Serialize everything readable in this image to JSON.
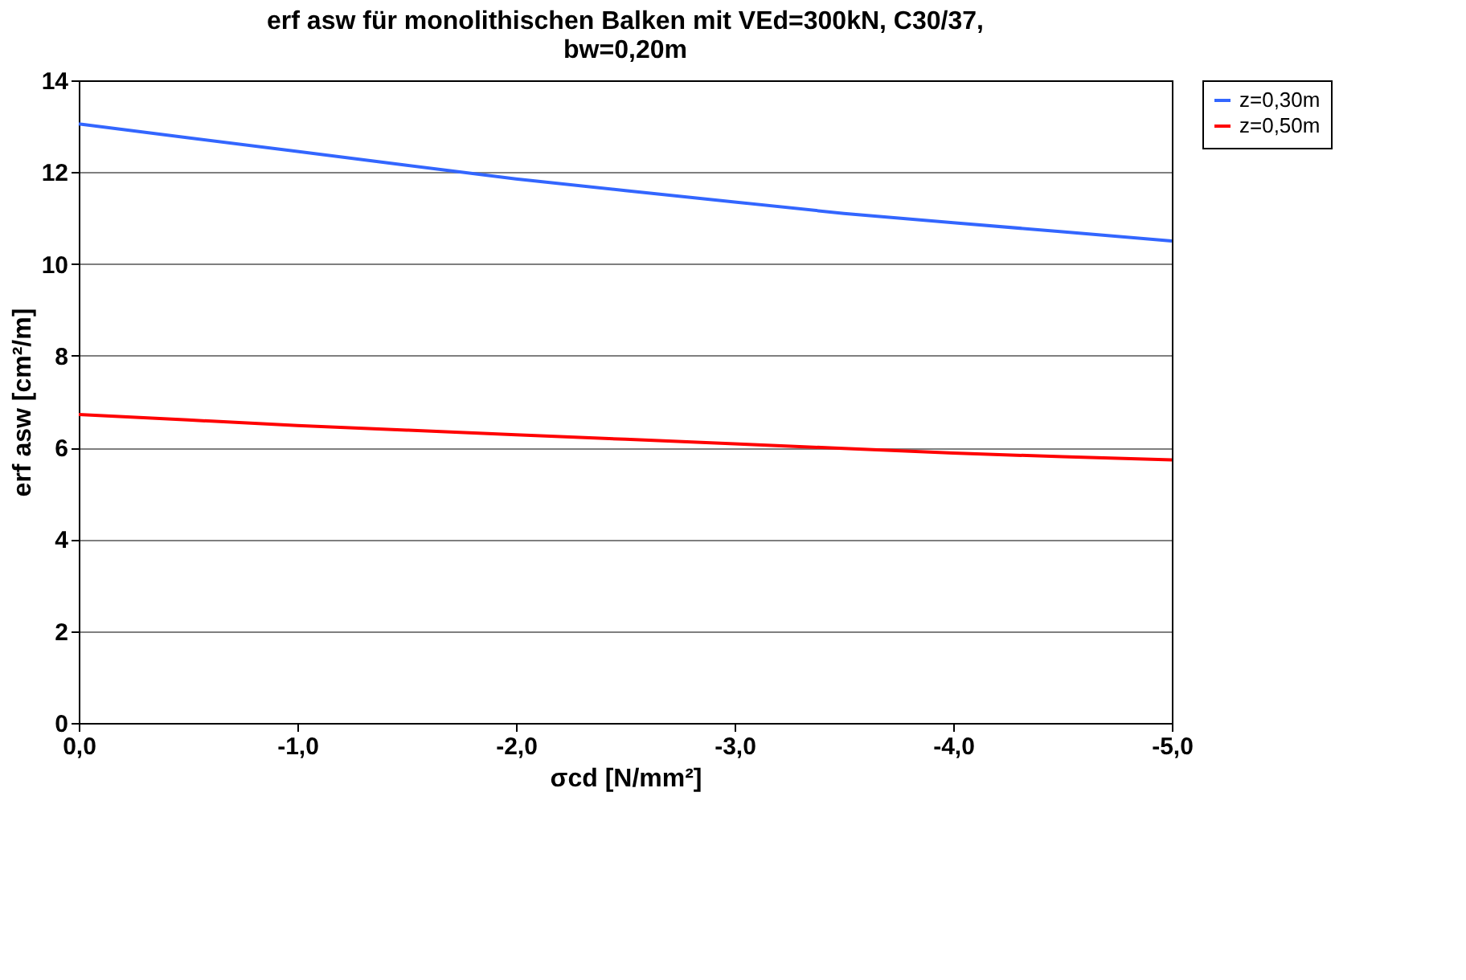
{
  "chart_data": {
    "type": "line",
    "title": [
      "erf asw für monolithischen Balken mit VEd=300kN, C30/37,",
      "bw=0,20m"
    ],
    "xlabel": "σcd [N/mm²]",
    "ylabel": "erf asw  [cm²/m]",
    "x": [
      0,
      -0.5,
      -1,
      -1.5,
      -2,
      -2.5,
      -3,
      -3.5,
      -4,
      -4.5,
      -5
    ],
    "series": [
      {
        "name": "z=0,30m",
        "color": "#3366ff",
        "values": [
          13.05,
          12.75,
          12.45,
          12.15,
          11.85,
          11.6,
          11.35,
          11.1,
          10.9,
          10.7,
          10.5
        ]
      },
      {
        "name": "z=0,50m",
        "color": "#ff0000",
        "values": [
          6.72,
          6.6,
          6.48,
          6.38,
          6.28,
          6.18,
          6.08,
          5.98,
          5.88,
          5.8,
          5.73
        ]
      }
    ],
    "xlim": [
      0,
      -5
    ],
    "xticks": [
      {
        "value": 0,
        "label": "0,0"
      },
      {
        "value": -1,
        "label": "-1,0"
      },
      {
        "value": -2,
        "label": "-2,0"
      },
      {
        "value": -3,
        "label": "-3,0"
      },
      {
        "value": -4,
        "label": "-4,0"
      },
      {
        "value": -5,
        "label": "-5,0"
      }
    ],
    "ylim": [
      0,
      14
    ],
    "yticks": [
      0,
      2,
      4,
      6,
      8,
      10,
      12,
      14
    ],
    "grid": "y",
    "legend": "right",
    "marker": "none",
    "line_style": "solid"
  }
}
